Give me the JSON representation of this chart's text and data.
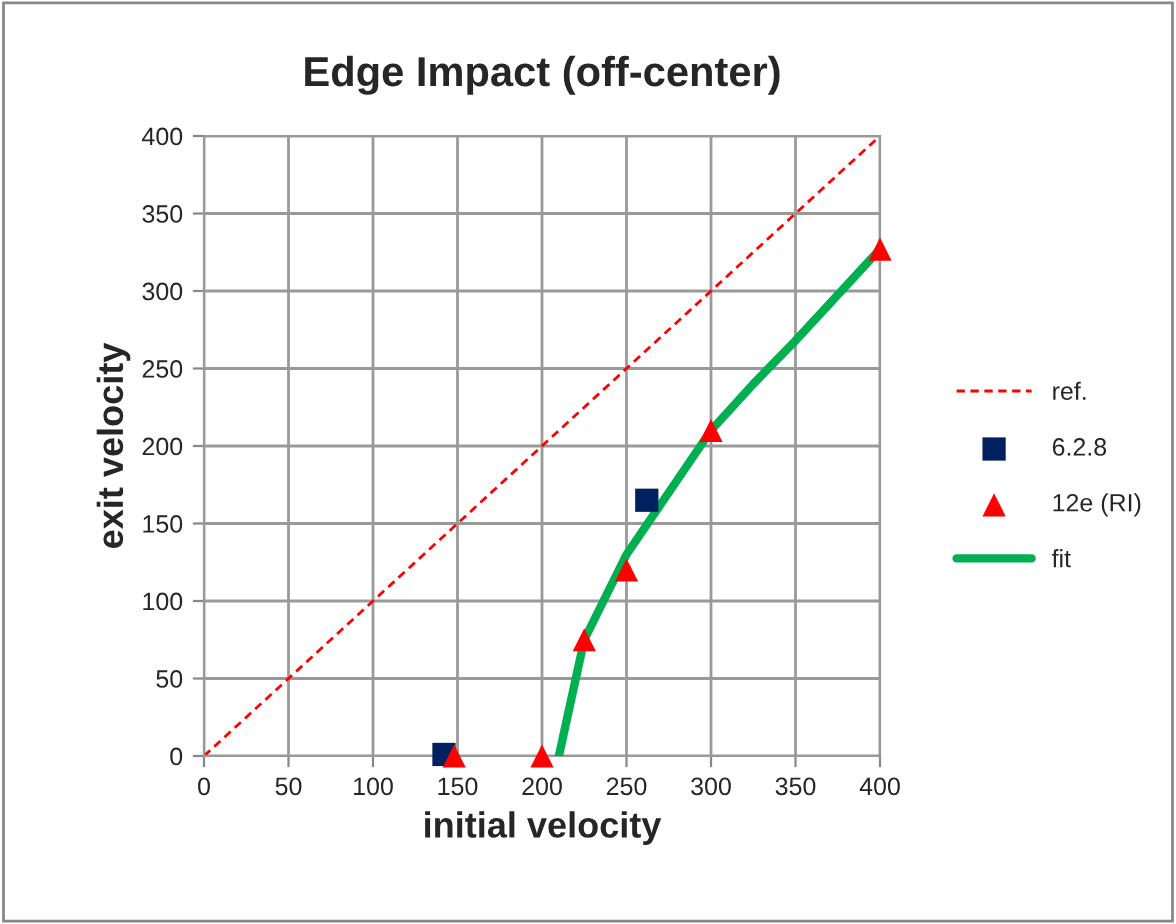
{
  "chart_data": {
    "type": "scatter",
    "title": "Edge Impact (off-center)",
    "xlabel": "initial velocity",
    "ylabel": "exit velocity",
    "xlim": [
      0,
      400
    ],
    "ylim": [
      0,
      400
    ],
    "xticks": [
      0,
      50,
      100,
      150,
      200,
      250,
      300,
      350,
      400
    ],
    "yticks": [
      0,
      50,
      100,
      150,
      200,
      250,
      300,
      350,
      400
    ],
    "grid": true,
    "legend": "right",
    "series": [
      {
        "name": "ref.",
        "type": "line",
        "color": "#ff0000",
        "line_style": "dashed",
        "marker": "none",
        "x": [
          0,
          400
        ],
        "values": [
          0,
          400
        ]
      },
      {
        "name": "6.2.8",
        "color": "#002060",
        "marker": "square",
        "x": [
          142,
          262
        ],
        "values": [
          1,
          165
        ]
      },
      {
        "name": "12e (RI)",
        "color": "#ff0000",
        "marker": "triangle",
        "x": [
          148,
          200,
          225,
          250,
          300,
          400
        ],
        "values": [
          0,
          0,
          75,
          120,
          210,
          327
        ]
      },
      {
        "name": "fit",
        "type": "line",
        "color": "#00b050",
        "line_style": "solid",
        "marker": "none",
        "x": [
          210,
          225,
          250,
          275,
          300,
          325,
          350,
          400
        ],
        "values": [
          0,
          75,
          130,
          170,
          210,
          240,
          268,
          327
        ]
      }
    ]
  }
}
